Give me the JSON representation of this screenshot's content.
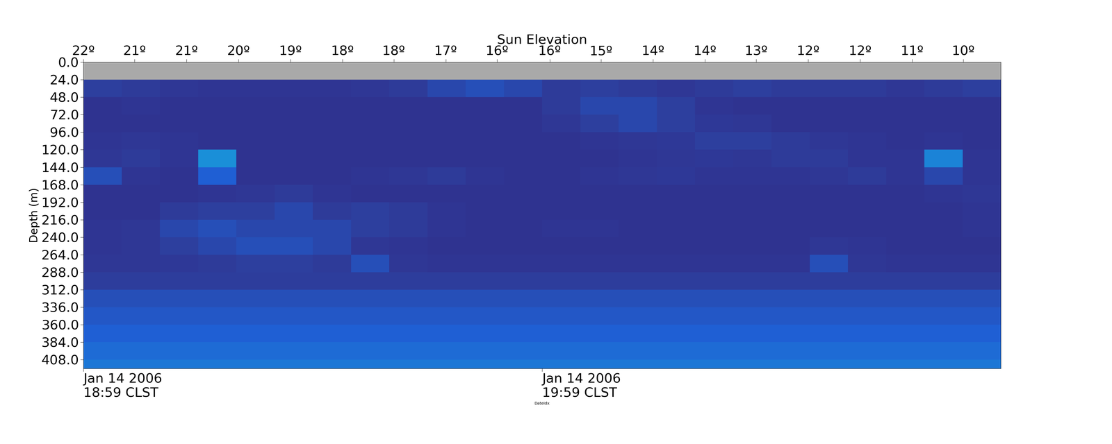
{
  "chart_data": {
    "type": "heatmap",
    "top_axis_label": "Sun Elevation",
    "x_label": "DateIdx",
    "y_label": "Depth (m)",
    "xlim": [
      0,
      120
    ],
    "ylim": [
      420,
      0
    ],
    "xticks": [
      {
        "value": 0,
        "label": "Jan 14 2006\n18:59 CLST"
      },
      {
        "value": 60,
        "label": "Jan 14 2006\n19:59 CLST"
      }
    ],
    "top_xticks": [
      {
        "value": 0,
        "label": "22º"
      },
      {
        "value": 6.7,
        "label": "21º"
      },
      {
        "value": 13.5,
        "label": "21º"
      },
      {
        "value": 20.3,
        "label": "20º"
      },
      {
        "value": 27.1,
        "label": "19º"
      },
      {
        "value": 33.9,
        "label": "18º"
      },
      {
        "value": 40.6,
        "label": "18º"
      },
      {
        "value": 47.4,
        "label": "17º"
      },
      {
        "value": 54.1,
        "label": "16º"
      },
      {
        "value": 61.0,
        "label": "16º"
      },
      {
        "value": 67.7,
        "label": "15º"
      },
      {
        "value": 74.5,
        "label": "14º"
      },
      {
        "value": 81.3,
        "label": "14º"
      },
      {
        "value": 88.0,
        "label": "13º"
      },
      {
        "value": 94.8,
        "label": "12º"
      },
      {
        "value": 101.6,
        "label": "12º"
      },
      {
        "value": 108.4,
        "label": "11º"
      },
      {
        "value": 115.1,
        "label": "10º"
      }
    ],
    "yticks": [
      {
        "value": 0,
        "label": "0.0"
      },
      {
        "value": 24,
        "label": "24.0"
      },
      {
        "value": 48,
        "label": "48.0"
      },
      {
        "value": 72,
        "label": "72.0"
      },
      {
        "value": 96,
        "label": "96.0"
      },
      {
        "value": 120,
        "label": "120.0"
      },
      {
        "value": 144,
        "label": "144.0"
      },
      {
        "value": 168,
        "label": "168.0"
      },
      {
        "value": 192,
        "label": "192.0"
      },
      {
        "value": 216,
        "label": "216.0"
      },
      {
        "value": 240,
        "label": "240.0"
      },
      {
        "value": 264,
        "label": "264.0"
      },
      {
        "value": 288,
        "label": "288.0"
      },
      {
        "value": 312,
        "label": "312.0"
      },
      {
        "value": 336,
        "label": "336.0"
      },
      {
        "value": 360,
        "label": "360.0"
      },
      {
        "value": 384,
        "label": "384.0"
      },
      {
        "value": 408,
        "label": "408.0"
      }
    ],
    "grid": false,
    "x_edges": [
      0,
      5,
      10,
      15,
      20,
      25,
      30,
      35,
      40,
      45,
      50,
      55,
      60,
      65,
      70,
      75,
      80,
      85,
      90,
      95,
      100,
      105,
      110,
      115,
      120
    ],
    "depth_edges": [
      0,
      24,
      48,
      72,
      96,
      120,
      144,
      168,
      192,
      216,
      240,
      264,
      288,
      312,
      336,
      360,
      384,
      408,
      420
    ],
    "color_range": [
      0,
      10
    ],
    "cells": [
      [
        null,
        null,
        null,
        null,
        null,
        null,
        null,
        null,
        null,
        null,
        null,
        null,
        null,
        null,
        null,
        null,
        null,
        null,
        null,
        null,
        null,
        null,
        null,
        null
      ],
      [
        2,
        1.5,
        1,
        0.8,
        0.8,
        0.8,
        0.8,
        1,
        1.5,
        2.5,
        3,
        2.5,
        1.5,
        2,
        1.5,
        1,
        1.5,
        2,
        1.5,
        1.5,
        1.5,
        1,
        1.5,
        2
      ],
      [
        0.5,
        0.8,
        0.5,
        0.5,
        0.5,
        0.5,
        0.5,
        0.5,
        0.5,
        0.5,
        0.5,
        0.5,
        1.5,
        2.5,
        2.5,
        2,
        0.8,
        0.5,
        0.5,
        0.5,
        0.5,
        0.5,
        0.5,
        0.5
      ],
      [
        0.5,
        0.5,
        0.5,
        0.5,
        0.5,
        0.5,
        0.5,
        0.5,
        0.5,
        0.5,
        0.5,
        0.5,
        1,
        2,
        2.5,
        2,
        1.2,
        1,
        0.5,
        0.5,
        0.5,
        0.5,
        0.5,
        0.5
      ],
      [
        0.8,
        1,
        0.8,
        0.5,
        0.5,
        0.5,
        0.5,
        0.5,
        0.5,
        0.5,
        0.5,
        0.5,
        0.5,
        0.8,
        1,
        1.2,
        2,
        2,
        1.5,
        1,
        0.8,
        0.5,
        0.8,
        0.5
      ],
      [
        1,
        1.5,
        0.8,
        6,
        0.5,
        0.5,
        0.5,
        0.5,
        0.5,
        0.5,
        0.5,
        0.5,
        0.5,
        0.5,
        0.8,
        1,
        1.2,
        1,
        1.5,
        1.5,
        0.8,
        0.8,
        5.5,
        0.8
      ],
      [
        3,
        0.8,
        0.5,
        4,
        0.5,
        0.5,
        0.5,
        0.8,
        1,
        1.5,
        0.8,
        0.5,
        0.5,
        0.8,
        1,
        1.2,
        0.8,
        0.8,
        0.8,
        1,
        1.5,
        0.8,
        2.5,
        0.8
      ],
      [
        0.5,
        0.5,
        0.5,
        0.8,
        1,
        1.5,
        0.8,
        0.5,
        0.5,
        0.5,
        0.5,
        0.5,
        0.5,
        0.5,
        0.5,
        0.5,
        0.5,
        0.5,
        0.5,
        0.5,
        0.5,
        0.5,
        0.8,
        1
      ],
      [
        0.5,
        0.5,
        1.5,
        2,
        2,
        2.5,
        1.5,
        2,
        1.5,
        0.8,
        0.5,
        0.5,
        0.5,
        0.5,
        0.5,
        0.5,
        0.5,
        0.5,
        0.5,
        0.5,
        0.5,
        0.5,
        0.5,
        0.8
      ],
      [
        0.8,
        1,
        2.5,
        3,
        2.5,
        2.5,
        2.5,
        2,
        1.5,
        0.8,
        0.5,
        0.5,
        0.8,
        0.8,
        0.5,
        0.5,
        0.5,
        0.5,
        0.5,
        0.5,
        0.5,
        0.5,
        0.5,
        0.8
      ],
      [
        0.8,
        1,
        2,
        2.5,
        3,
        3,
        2.5,
        1,
        0.8,
        0.5,
        0.5,
        0.5,
        0.5,
        0.5,
        0.5,
        0.5,
        0.5,
        0.5,
        0.5,
        1,
        0.8,
        0.5,
        0.5,
        0.5
      ],
      [
        1,
        1,
        1.2,
        1.5,
        2,
        2,
        1.5,
        3,
        1,
        0.8,
        0.8,
        0.8,
        0.8,
        0.8,
        0.8,
        0.8,
        0.8,
        0.8,
        0.8,
        3,
        1,
        0.8,
        0.8,
        0.8
      ],
      [
        1.8,
        1.8,
        1.8,
        1.8,
        1.8,
        1.8,
        1.8,
        1.8,
        1.8,
        1.8,
        1.8,
        1.8,
        1.8,
        1.8,
        1.8,
        1.8,
        1.8,
        1.8,
        1.8,
        1.8,
        1.8,
        1.8,
        1.8,
        1.8
      ],
      [
        3,
        3,
        3,
        3,
        3,
        3,
        3,
        3,
        3,
        3,
        3,
        3,
        3,
        3,
        3,
        3,
        3,
        3,
        3,
        3,
        3,
        3,
        3,
        3
      ],
      [
        3.5,
        3.5,
        3.5,
        3.5,
        3.5,
        3.5,
        3.5,
        3.5,
        3.5,
        3.5,
        3.5,
        3.5,
        3.5,
        3.5,
        3.5,
        3.5,
        3.5,
        3.5,
        3.5,
        3.5,
        3.5,
        3.5,
        3.5,
        3.5
      ],
      [
        4,
        4,
        4,
        4,
        4,
        4,
        4,
        4,
        4,
        4,
        4,
        4,
        4,
        4,
        4,
        4,
        4,
        4,
        4,
        4,
        4,
        4,
        4,
        4
      ],
      [
        4.5,
        4.5,
        4.5,
        4.5,
        4.5,
        4.5,
        4.5,
        4.5,
        4.5,
        4.5,
        4.5,
        4.5,
        4.5,
        4.5,
        4.5,
        4.5,
        4.5,
        4.5,
        4.5,
        4.5,
        4.5,
        4.5,
        4.5,
        4.5
      ],
      [
        5,
        5,
        5,
        5,
        5,
        5,
        5,
        5,
        5,
        5,
        5,
        5,
        5,
        5,
        5,
        5,
        5,
        5,
        5,
        5,
        5,
        5,
        5,
        5
      ]
    ]
  }
}
